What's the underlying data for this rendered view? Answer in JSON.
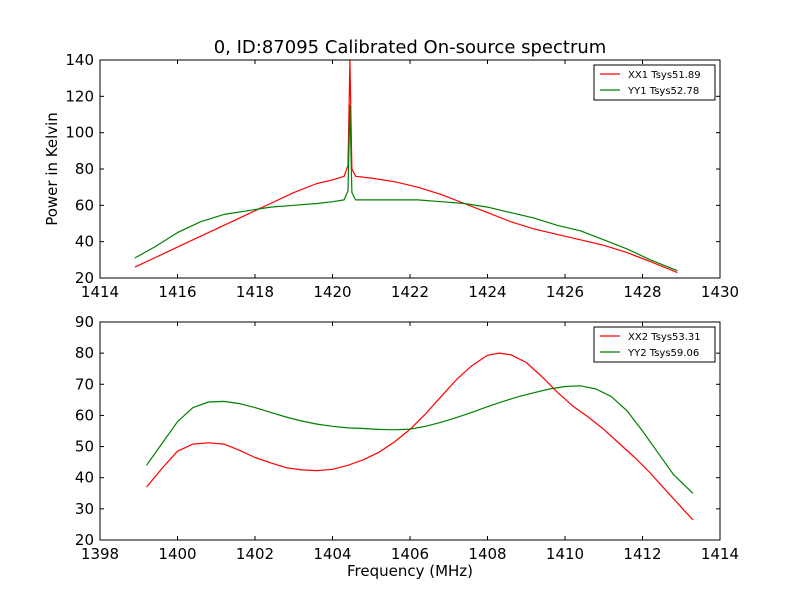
{
  "chart_data": [
    {
      "type": "line",
      "title": "0, ID:87095 Calibrated On-source spectrum",
      "xlabel": "",
      "ylabel": "Power in Kelvin",
      "xlim": [
        1414,
        1430
      ],
      "ylim": [
        20,
        140
      ],
      "xticks": [
        "1414",
        "1416",
        "1418",
        "1420",
        "1422",
        "1424",
        "1426",
        "1428",
        "1430"
      ],
      "yticks": [
        "20",
        "40",
        "60",
        "80",
        "100",
        "120",
        "140"
      ],
      "grid": false,
      "legend_position": "top-right",
      "series": [
        {
          "name": "XX1 Tsys51.89",
          "color": "#ff0000",
          "x": [
            1414.9,
            1415.4,
            1416.0,
            1416.6,
            1417.2,
            1417.8,
            1418.4,
            1419.0,
            1419.6,
            1420.0,
            1420.3,
            1420.4,
            1420.45,
            1420.5,
            1420.6,
            1421.0,
            1421.6,
            1422.2,
            1422.8,
            1423.4,
            1424.0,
            1424.6,
            1425.2,
            1425.8,
            1426.4,
            1427.0,
            1427.6,
            1428.2,
            1428.9
          ],
          "y": [
            26,
            31,
            37,
            43,
            49,
            55,
            61,
            67,
            72,
            74,
            76,
            82,
            140,
            80,
            76,
            75,
            73,
            70,
            66,
            61,
            56,
            51,
            47,
            44,
            41,
            38,
            34,
            29,
            23
          ]
        },
        {
          "name": "YY1 Tsys52.78",
          "color": "#008000",
          "x": [
            1414.9,
            1415.4,
            1416.0,
            1416.6,
            1417.2,
            1417.8,
            1418.4,
            1419.0,
            1419.6,
            1420.0,
            1420.3,
            1420.4,
            1420.45,
            1420.5,
            1420.6,
            1421.0,
            1421.6,
            1422.2,
            1422.8,
            1423.4,
            1424.0,
            1424.6,
            1425.2,
            1425.8,
            1426.4,
            1427.0,
            1427.6,
            1428.2,
            1428.9
          ],
          "y": [
            31,
            37,
            45,
            51,
            55,
            57,
            59,
            60,
            61,
            62,
            63,
            68,
            115,
            67,
            63,
            63,
            63,
            63,
            62,
            61,
            59,
            56,
            53,
            49,
            46,
            41,
            36,
            30,
            24
          ]
        }
      ]
    },
    {
      "type": "line",
      "title": "",
      "xlabel": "Frequency (MHz)",
      "ylabel": "",
      "xlim": [
        1398,
        1414
      ],
      "ylim": [
        20,
        90
      ],
      "xticks": [
        "1398",
        "1400",
        "1402",
        "1404",
        "1406",
        "1408",
        "1410",
        "1412",
        "1414"
      ],
      "yticks": [
        "20",
        "30",
        "40",
        "50",
        "60",
        "70",
        "80",
        "90"
      ],
      "grid": false,
      "legend_position": "top-right",
      "series": [
        {
          "name": "XX2 Tsys53.31",
          "color": "#ff0000",
          "x": [
            1399.2,
            1399.6,
            1400.0,
            1400.4,
            1400.8,
            1401.2,
            1401.6,
            1402.0,
            1402.4,
            1402.8,
            1403.2,
            1403.6,
            1404.0,
            1404.4,
            1404.8,
            1405.2,
            1405.6,
            1406.0,
            1406.4,
            1406.8,
            1407.2,
            1407.6,
            1408.0,
            1408.3,
            1408.6,
            1409.0,
            1409.4,
            1409.8,
            1410.2,
            1410.6,
            1411.0,
            1411.4,
            1411.8,
            1412.2,
            1412.6,
            1413.0,
            1413.3
          ],
          "y": [
            37,
            43,
            48.5,
            50.8,
            51.2,
            50.8,
            48.8,
            46.5,
            44.8,
            43.2,
            42.5,
            42.3,
            42.7,
            44,
            45.8,
            48.2,
            51.5,
            55.5,
            60.5,
            66,
            71.5,
            76,
            79.3,
            80,
            79.5,
            77,
            72.5,
            67.5,
            63,
            59.5,
            55.5,
            51,
            46.5,
            41.5,
            36,
            30.5,
            26.5
          ]
        },
        {
          "name": "YY2 Tsys59.06",
          "color": "#008000",
          "x": [
            1399.2,
            1399.6,
            1400.0,
            1400.4,
            1400.8,
            1401.2,
            1401.6,
            1402.0,
            1402.4,
            1402.8,
            1403.2,
            1403.6,
            1404.0,
            1404.4,
            1404.8,
            1405.2,
            1405.6,
            1406.0,
            1406.4,
            1406.8,
            1407.2,
            1407.6,
            1408.0,
            1408.4,
            1408.8,
            1409.2,
            1409.6,
            1410.0,
            1410.4,
            1410.8,
            1411.2,
            1411.6,
            1412.0,
            1412.4,
            1412.8,
            1413.3
          ],
          "y": [
            44,
            51,
            58,
            62.5,
            64.3,
            64.5,
            63.8,
            62.5,
            61,
            59.5,
            58.2,
            57.2,
            56.5,
            56,
            55.8,
            55.5,
            55.4,
            55.6,
            56.5,
            57.8,
            59.3,
            61,
            62.8,
            64.5,
            66,
            67.3,
            68.5,
            69.3,
            69.5,
            68.5,
            66,
            61.5,
            55,
            48,
            41,
            35
          ]
        }
      ]
    }
  ]
}
